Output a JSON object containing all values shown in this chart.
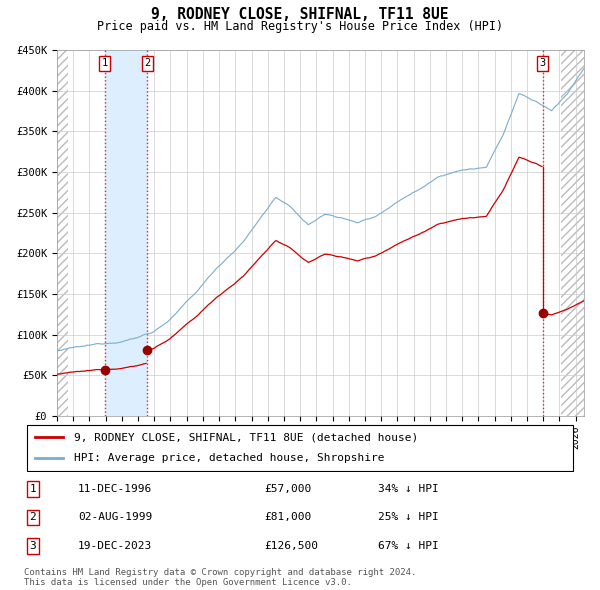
{
  "title": "9, RODNEY CLOSE, SHIFNAL, TF11 8UE",
  "subtitle": "Price paid vs. HM Land Registry's House Price Index (HPI)",
  "ylim": [
    0,
    450000
  ],
  "yticks": [
    0,
    50000,
    100000,
    150000,
    200000,
    250000,
    300000,
    350000,
    400000,
    450000
  ],
  "ytick_labels": [
    "£0",
    "£50K",
    "£100K",
    "£150K",
    "£200K",
    "£250K",
    "£300K",
    "£350K",
    "£400K",
    "£450K"
  ],
  "xlim_start": 1994.0,
  "xlim_end": 2026.5,
  "hpi_color": "#7aadcf",
  "price_color": "#cc0000",
  "dot_color": "#990000",
  "vline_color": "#cc0000",
  "vband_color": "#ddeeff",
  "hatch_color": "#cccccc",
  "sale1_year": 1996.94,
  "sale2_year": 1999.58,
  "sale3_year": 2023.96,
  "sale1_price": 57000,
  "sale2_price": 81000,
  "sale3_price": 126500,
  "legend_label_price": "9, RODNEY CLOSE, SHIFNAL, TF11 8UE (detached house)",
  "legend_label_hpi": "HPI: Average price, detached house, Shropshire",
  "table_rows": [
    {
      "num": "1",
      "date": "11-DEC-1996",
      "price": "£57,000",
      "hpi": "34% ↓ HPI"
    },
    {
      "num": "2",
      "date": "02-AUG-1999",
      "price": "£81,000",
      "hpi": "25% ↓ HPI"
    },
    {
      "num": "3",
      "date": "19-DEC-2023",
      "price": "£126,500",
      "hpi": "67% ↓ HPI"
    }
  ],
  "footnote": "Contains HM Land Registry data © Crown copyright and database right 2024.\nThis data is licensed under the Open Government Licence v3.0.",
  "hpi_anchors_years": [
    1994.0,
    1995.0,
    1996.0,
    1997.0,
    1998.0,
    1999.0,
    2000.0,
    2001.0,
    2002.5,
    2004.0,
    2005.5,
    2007.5,
    2008.5,
    2009.5,
    2010.5,
    2011.5,
    2012.5,
    2013.5,
    2014.5,
    2015.5,
    2016.5,
    2017.5,
    2018.5,
    2019.5,
    2020.5,
    2021.5,
    2022.5,
    2023.5,
    2024.5,
    2025.5,
    2026.5
  ],
  "hpi_anchors_vals": [
    80000,
    83000,
    85000,
    88000,
    92000,
    97000,
    105000,
    120000,
    150000,
    185000,
    215000,
    270000,
    255000,
    235000,
    248000,
    245000,
    238000,
    245000,
    258000,
    272000,
    283000,
    298000,
    305000,
    308000,
    310000,
    348000,
    400000,
    390000,
    378000,
    400000,
    430000
  ]
}
